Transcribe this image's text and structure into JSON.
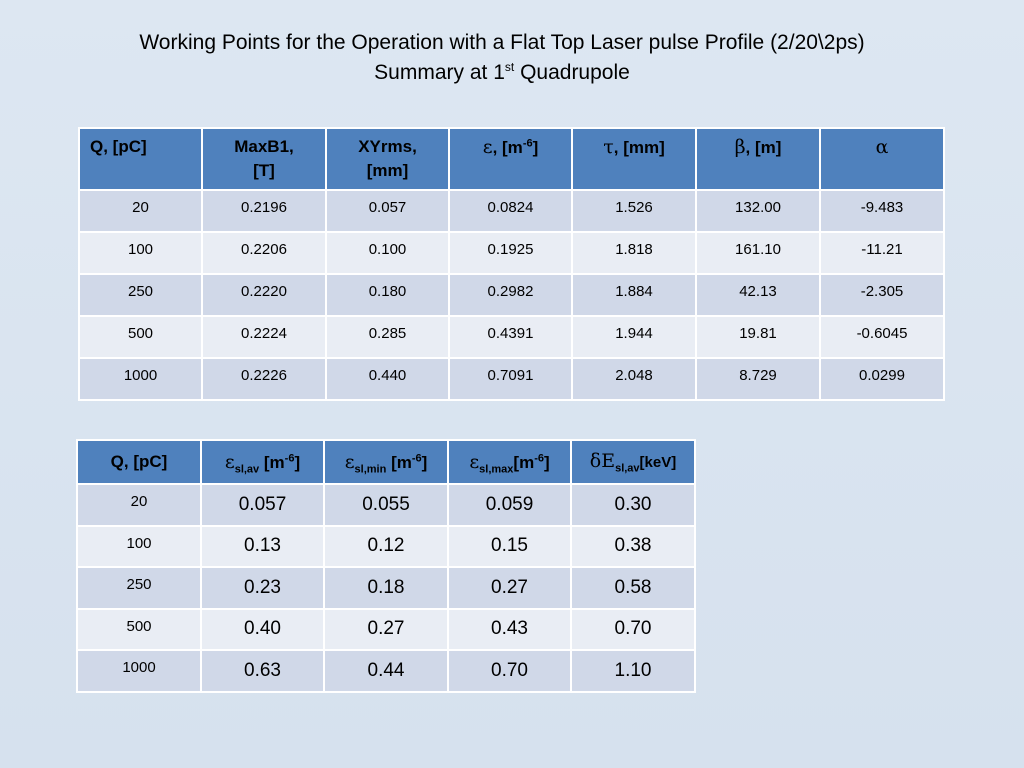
{
  "title": {
    "line1": "Working Points  for the Operation with a Flat Top Laser pulse Profile (2/20\\2ps)",
    "line2_pre": "Summary at 1",
    "line2_sup": "st",
    "line2_post": " Quadrupole"
  },
  "table1": {
    "headers": {
      "q": "Q, [pC]",
      "maxb1_line1": "MaxB1,",
      "maxb1_line2": "[T]",
      "xyrms_line1": "XYrms,",
      "xyrms_line2": "[mm]",
      "eps_symbol": "ε",
      "eps_unit_pre": ", [m",
      "eps_unit_sup": "-6",
      "eps_unit_post": "]",
      "tau_symbol": "τ",
      "tau_unit": ", [mm]",
      "beta_symbol": "β",
      "beta_unit": ", [m]",
      "alpha_symbol": "α"
    },
    "rows": [
      [
        "20",
        "0.2196",
        "0.057",
        "0.0824",
        "1.526",
        "132.00",
        "-9.483"
      ],
      [
        "100",
        "0.2206",
        "0.100",
        "0.1925",
        "1.818",
        "161.10",
        "-11.21"
      ],
      [
        "250",
        "0.2220",
        "0.180",
        "0.2982",
        "1.884",
        "42.13",
        "-2.305"
      ],
      [
        "500",
        "0.2224",
        "0.285",
        "0.4391",
        "1.944",
        "19.81",
        "-0.6045"
      ],
      [
        "1000",
        "0.2226",
        "0.440",
        "0.7091",
        "2.048",
        "8.729",
        "0.0299"
      ]
    ]
  },
  "table2": {
    "headers": {
      "q": "Q, [pC]",
      "eps_symbol": "ε",
      "sl_av_sub": "sl,av",
      "sl_min_sub": "sl,min",
      "sl_max_sub": "sl,max",
      "unit_pre": " [m",
      "unit_pre_nospace": "[m",
      "unit_sup": "-6",
      "unit_post": "]",
      "dE_symbol": "δE",
      "kev_unit": "[keV]"
    },
    "rows": [
      [
        "20",
        "0.057",
        "0.055",
        "0.059",
        "0.30"
      ],
      [
        "100",
        "0.13",
        "0.12",
        "0.15",
        "0.38"
      ],
      [
        "250",
        "0.23",
        "0.18",
        "0.27",
        "0.58"
      ],
      [
        "500",
        "0.40",
        "0.27",
        "0.43",
        "0.70"
      ],
      [
        "1000",
        "0.63",
        "0.44",
        "0.70",
        "1.10"
      ]
    ]
  }
}
